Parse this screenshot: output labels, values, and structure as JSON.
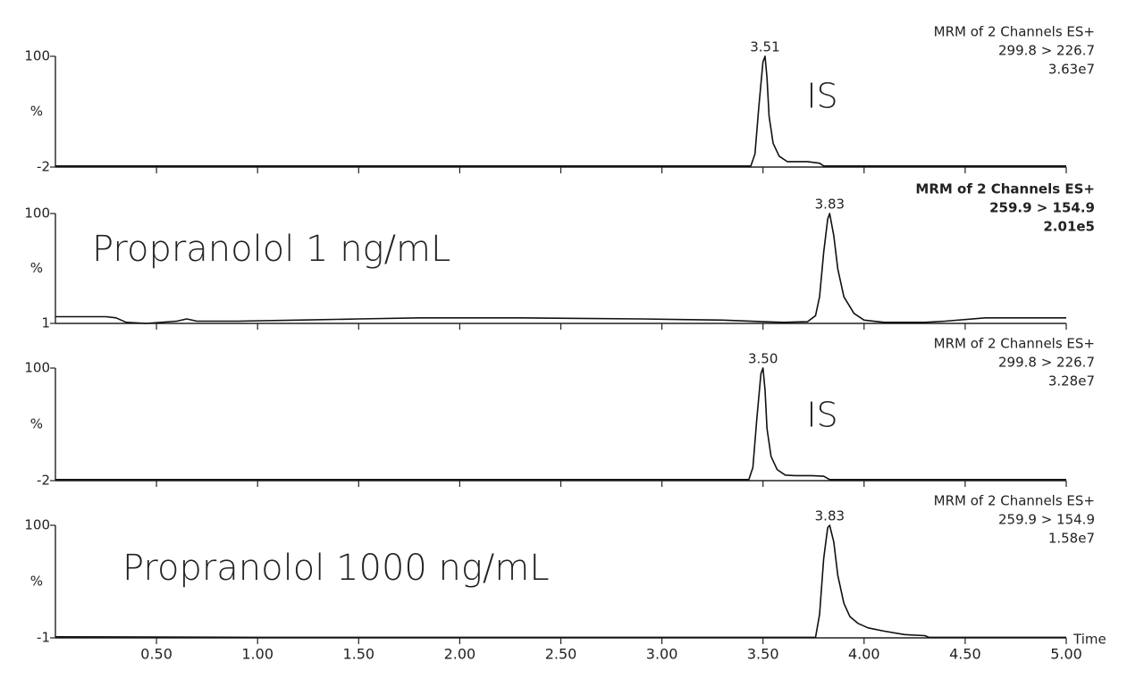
{
  "chart_data": [
    {
      "type": "line",
      "header": [
        "MRM of 2 Channels ES+",
        "299.8 > 226.7",
        "3.63e7"
      ],
      "header_bold": false,
      "peak_label": "3.51",
      "sample_label": "IS",
      "ylabel": "%",
      "xlim": [
        0,
        5
      ],
      "ylim": [
        -2,
        100
      ],
      "yticks": [
        -2,
        100
      ],
      "color": "#111111",
      "x": [
        0,
        3.44,
        3.46,
        3.48,
        3.5,
        3.51,
        3.52,
        3.53,
        3.55,
        3.58,
        3.62,
        3.66,
        3.72,
        3.78,
        3.8,
        5
      ],
      "values": [
        -1,
        -1,
        10,
        55,
        95,
        100,
        80,
        45,
        20,
        8,
        3,
        3,
        3,
        1.5,
        -1,
        -1
      ]
    },
    {
      "type": "line",
      "header": [
        "MRM of 2 Channels ES+",
        "259.9 > 154.9",
        "2.01e5"
      ],
      "header_bold": true,
      "peak_label": "3.83",
      "sample_label": "Propranolol 1 ng/mL",
      "ylabel": "%",
      "xlim": [
        0,
        5
      ],
      "ylim": [
        1,
        100
      ],
      "yticks": [
        1,
        100
      ],
      "color": "#111111",
      "x": [
        0,
        0.1,
        0.25,
        0.3,
        0.35,
        0.45,
        0.6,
        0.65,
        0.7,
        0.9,
        1.2,
        1.5,
        1.8,
        2.0,
        2.3,
        2.6,
        2.9,
        3.1,
        3.3,
        3.5,
        3.6,
        3.72,
        3.76,
        3.78,
        3.8,
        3.82,
        3.83,
        3.85,
        3.87,
        3.9,
        3.95,
        4.0,
        4.1,
        4.3,
        4.4,
        4.6,
        4.8,
        5
      ],
      "values": [
        7,
        7,
        7,
        6,
        2,
        1,
        3,
        5,
        3,
        3,
        4,
        5,
        6,
        6,
        6,
        5.5,
        5,
        4.5,
        4,
        2.5,
        2,
        2.5,
        8,
        25,
        65,
        95,
        100,
        80,
        50,
        25,
        10,
        4,
        2,
        2,
        3,
        6,
        6,
        6
      ]
    },
    {
      "type": "line",
      "header": [
        "MRM of 2 Channels ES+",
        "299.8 > 226.7",
        "3.28e7"
      ],
      "header_bold": false,
      "peak_label": "3.50",
      "sample_label": "IS",
      "ylabel": "%",
      "xlim": [
        0,
        5
      ],
      "ylim": [
        -2,
        100
      ],
      "yticks": [
        -2,
        100
      ],
      "color": "#111111",
      "x": [
        0,
        3.43,
        3.45,
        3.47,
        3.49,
        3.5,
        3.51,
        3.52,
        3.54,
        3.57,
        3.61,
        3.66,
        3.74,
        3.8,
        3.83,
        5
      ],
      "values": [
        -1,
        -1,
        10,
        55,
        95,
        100,
        80,
        45,
        20,
        8,
        3,
        2.5,
        2.5,
        2,
        -1,
        -1
      ]
    },
    {
      "type": "line",
      "header": [
        "MRM of 2 Channels ES+",
        "259.9 > 154.9",
        "1.58e7"
      ],
      "header_bold": false,
      "peak_label": "3.83",
      "sample_label": "Propranolol 1000 ng/mL",
      "ylabel": "%",
      "xlabel": "Time",
      "xlim": [
        0,
        5
      ],
      "ylim": [
        -1,
        100
      ],
      "yticks": [
        -1,
        100
      ],
      "color": "#111111",
      "xticks": [
        {
          "value": 0.5,
          "label": "0.50"
        },
        {
          "value": 1,
          "label": "1.00"
        },
        {
          "value": 1.5,
          "label": "1.50"
        },
        {
          "value": 2,
          "label": "2.00"
        },
        {
          "value": 2.5,
          "label": "2.50"
        },
        {
          "value": 3,
          "label": "3.00"
        },
        {
          "value": 3.5,
          "label": "3.50"
        },
        {
          "value": 4,
          "label": "4.00"
        },
        {
          "value": 4.5,
          "label": "4.50"
        },
        {
          "value": 5,
          "label": "5.00"
        }
      ],
      "x": [
        0,
        1,
        3.76,
        3.78,
        3.8,
        3.82,
        3.83,
        3.85,
        3.87,
        3.9,
        3.93,
        3.97,
        4.02,
        4.1,
        4.2,
        4.3,
        4.32,
        5
      ],
      "values": [
        0,
        -0.5,
        -0.5,
        20,
        70,
        98,
        100,
        85,
        55,
        30,
        18,
        12,
        8,
        5,
        2,
        1,
        -0.5,
        -0.5
      ]
    }
  ]
}
